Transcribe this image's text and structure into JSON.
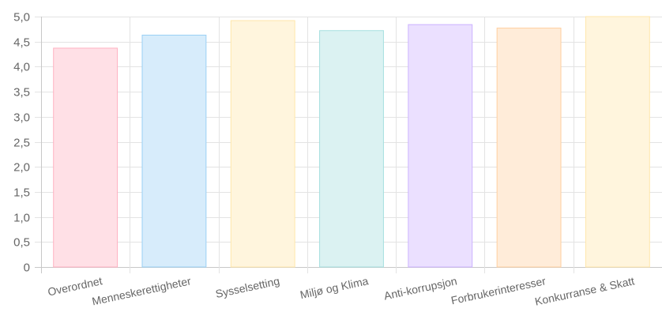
{
  "chart_data": {
    "type": "bar",
    "title": "",
    "xlabel": "",
    "ylabel": "",
    "categories": [
      "Overordnet",
      "Menneskerettigheter",
      "Sysselsetting",
      "Miljø og Klima",
      "Anti-korrupsjon",
      "Forbrukerinteresser",
      "Konkurranse & Skatt"
    ],
    "values": [
      4.37,
      4.63,
      4.92,
      4.72,
      4.84,
      4.77,
      5.0
    ],
    "ylim": [
      0,
      5
    ],
    "y_ticks": [
      "0",
      "0,5",
      "1,0",
      "1,5",
      "2,0",
      "2,5",
      "3,0",
      "3,5",
      "4,0",
      "4,5",
      "5,0"
    ],
    "grid": true,
    "legend": "none",
    "bar_fill_colors": [
      "#FFE0E6",
      "#D7ECFB",
      "#FFF5DD",
      "#DBF2F2",
      "#EBE0FF",
      "#FFECD9",
      "#FFF5DD"
    ],
    "bar_border_colors": [
      "#FFB1C1",
      "#9AD0F5",
      "#FFE6AA",
      "#A5DFDF",
      "#CCB2FF",
      "#FFCF9F",
      "#FFE6AA"
    ]
  }
}
